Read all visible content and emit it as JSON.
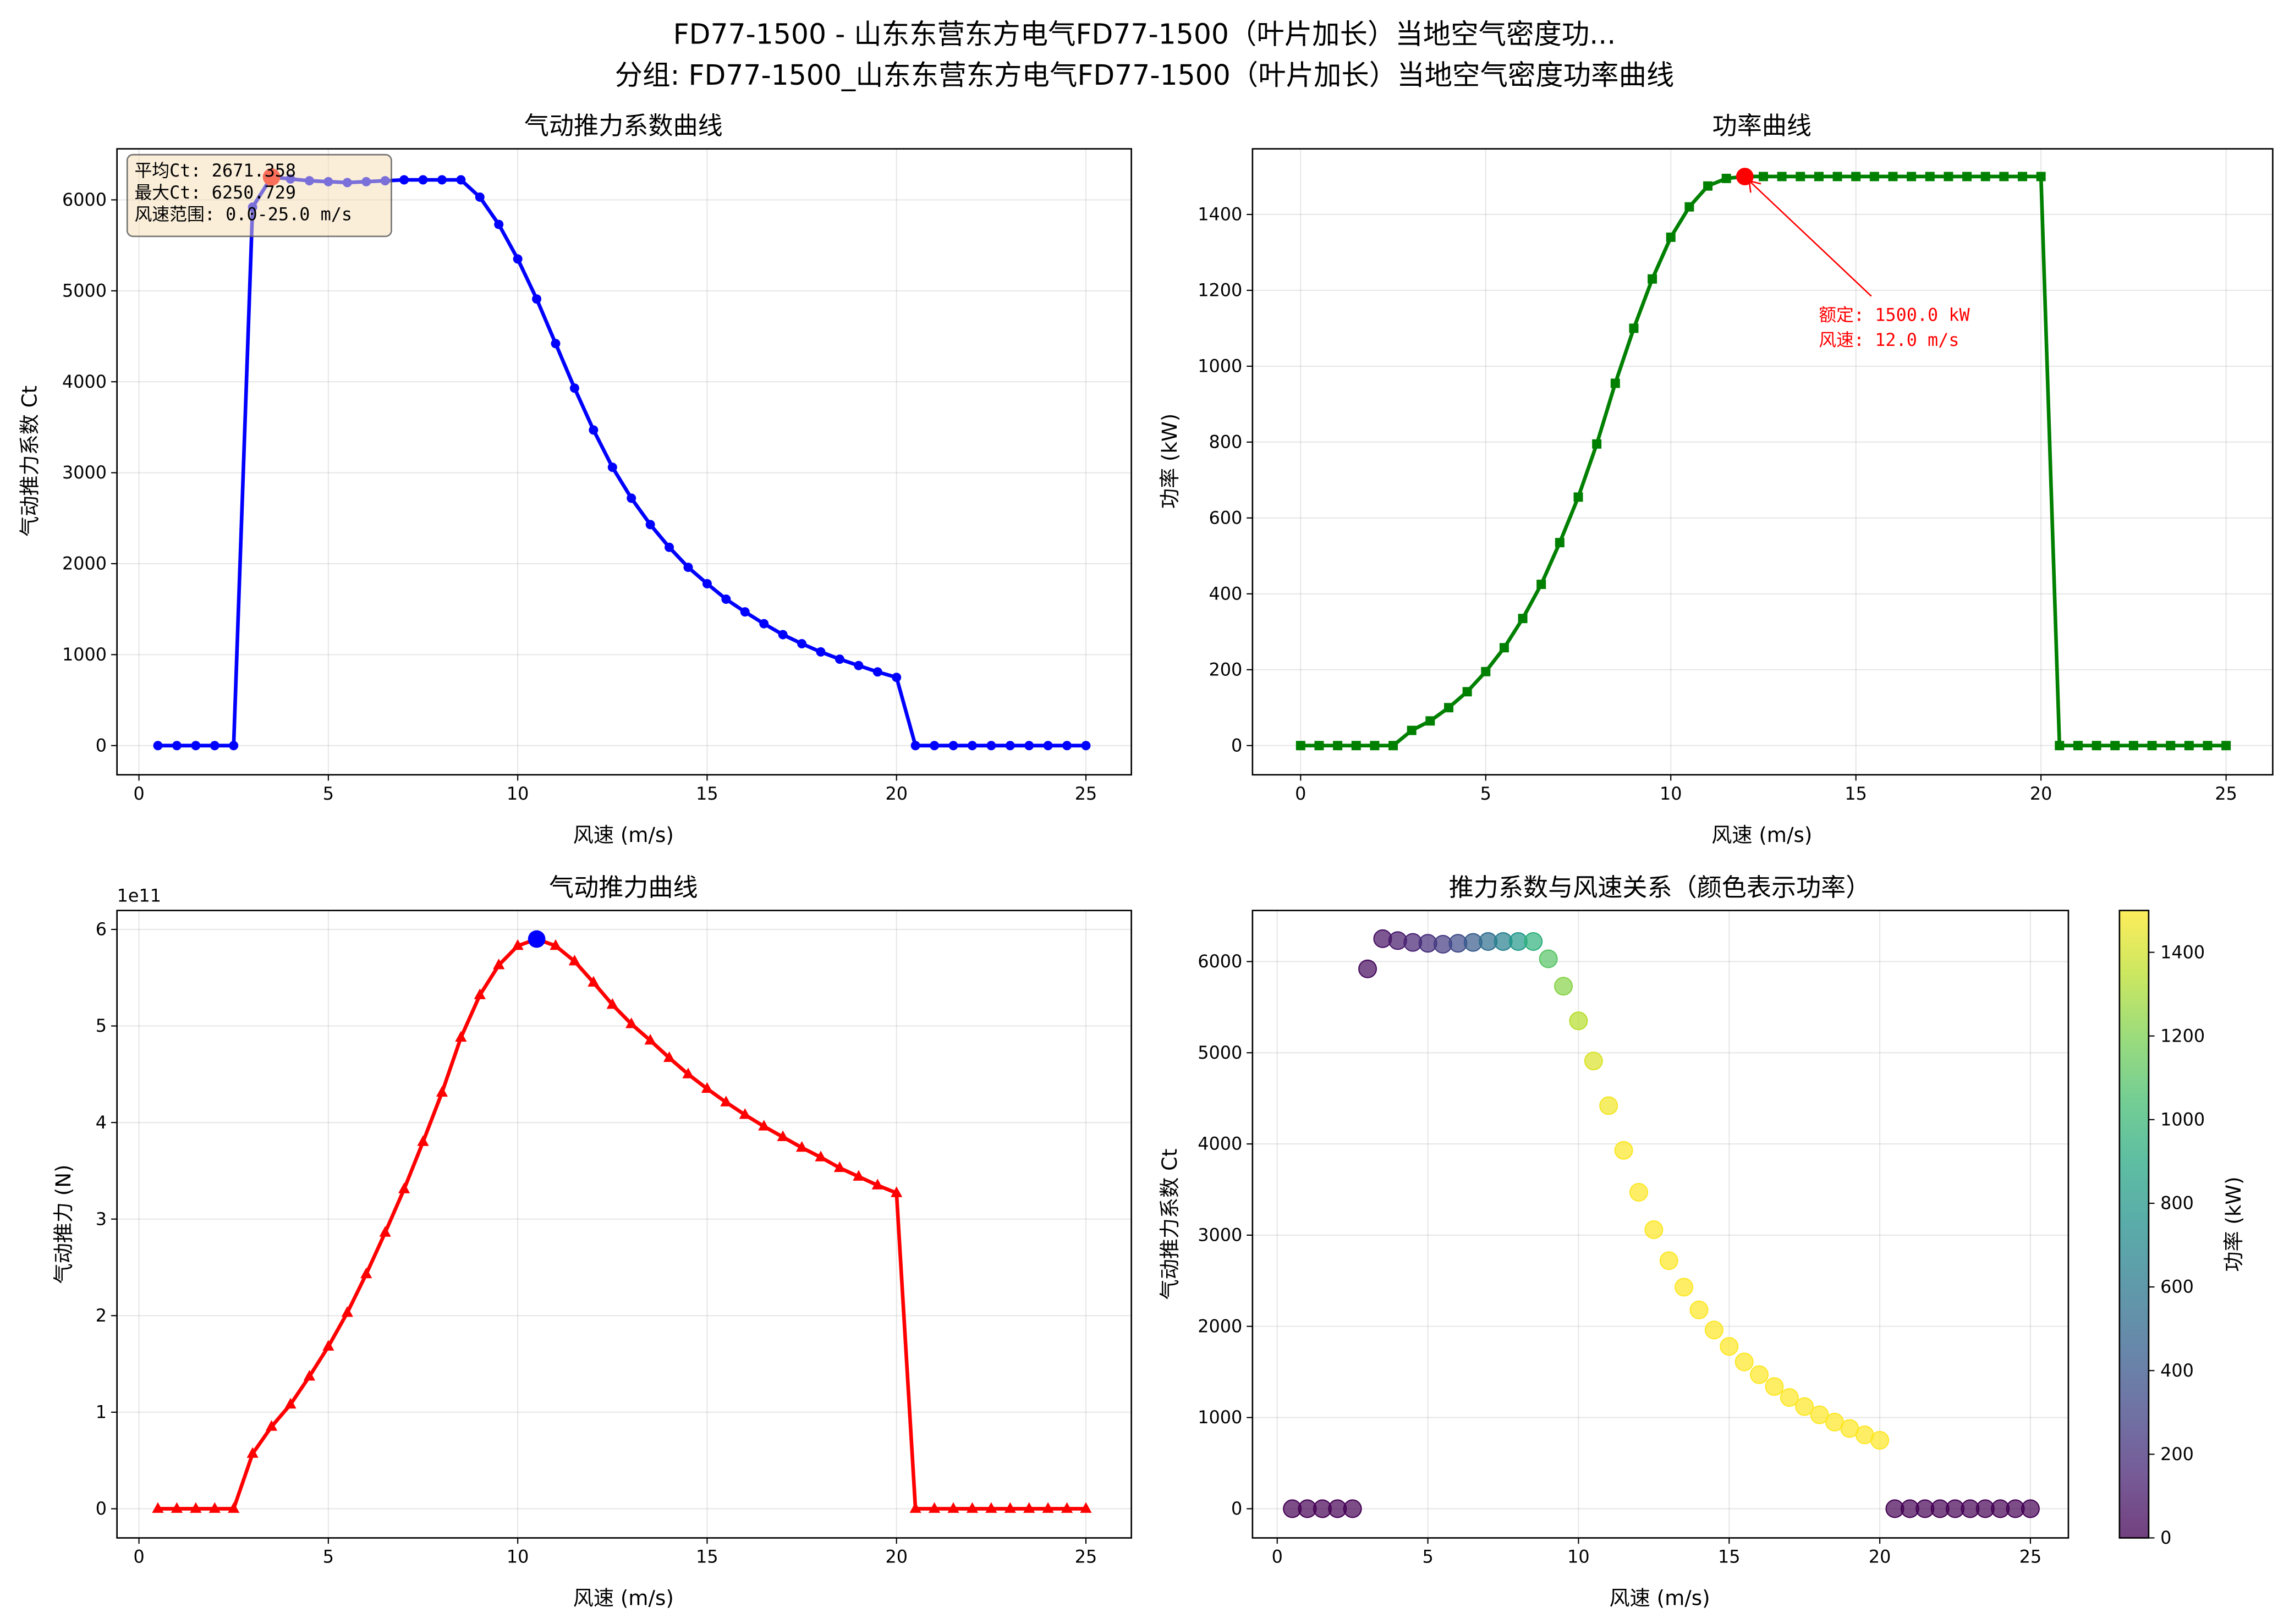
{
  "suptitle": {
    "line1": "FD77-1500 - 山东东营东方电气FD77-1500（叶片加长）当地空气密度功...",
    "line2": "分组: FD77-1500_山东东营东方电气FD77-1500（叶片加长）当地空气密度功率曲线"
  },
  "chart_data": [
    {
      "type": "line",
      "title": "气动推力系数曲线",
      "xlabel": "风速 (m/s)",
      "ylabel": "气动推力系数 Ct",
      "x": [
        0.5,
        1,
        1.5,
        2,
        2.5,
        3,
        3.5,
        4,
        4.5,
        5,
        5.5,
        6,
        6.5,
        7,
        7.5,
        8,
        8.5,
        9,
        9.5,
        10,
        10.5,
        11,
        11.5,
        12,
        12.5,
        13,
        13.5,
        14,
        14.5,
        15,
        15.5,
        16,
        16.5,
        17,
        17.5,
        18,
        18.5,
        19,
        19.5,
        20,
        20.5,
        21,
        21.5,
        22,
        22.5,
        23,
        23.5,
        24,
        24.5,
        25
      ],
      "y": [
        0,
        0,
        0,
        0,
        0,
        5920,
        6250.729,
        6230,
        6210,
        6200,
        6190,
        6200,
        6210,
        6220,
        6220,
        6220,
        6220,
        6030,
        5730,
        5350,
        4910,
        4420,
        3930,
        3470,
        3060,
        2720,
        2430,
        2180,
        1960,
        1780,
        1610,
        1470,
        1340,
        1220,
        1120,
        1030,
        950,
        880,
        810,
        750,
        0,
        0,
        0,
        0,
        0,
        0,
        0,
        0,
        0,
        0
      ],
      "xticks": [
        0,
        5,
        10,
        15,
        20,
        25
      ],
      "yticks": [
        0,
        1000,
        2000,
        3000,
        4000,
        5000,
        6000
      ],
      "color": "#0000ff",
      "marker": "circle",
      "highlight": {
        "x": 3.5,
        "y": 6250.729,
        "color": "#ff0000"
      },
      "textbox": [
        "平均Ct: 2671.358",
        "最大Ct: 6250.729",
        "风速范围: 0.0-25.0 m/s"
      ],
      "grid": true
    },
    {
      "type": "line",
      "title": "功率曲线",
      "xlabel": "风速 (m/s)",
      "ylabel": "功率 (kW)",
      "x": [
        0,
        0.5,
        1,
        1.5,
        2,
        2.5,
        3,
        3.5,
        4,
        4.5,
        5,
        5.5,
        6,
        6.5,
        7,
        7.5,
        8,
        8.5,
        9,
        9.5,
        10,
        10.5,
        11,
        11.5,
        12,
        12.5,
        13,
        13.5,
        14,
        14.5,
        15,
        15.5,
        16,
        16.5,
        17,
        17.5,
        18,
        18.5,
        19,
        19.5,
        20,
        20.5,
        21,
        21.5,
        22,
        22.5,
        23,
        23.5,
        24,
        24.5,
        25
      ],
      "y": [
        0,
        0,
        0,
        0,
        0,
        0,
        40,
        65,
        100,
        142,
        195,
        258,
        335,
        425,
        535,
        655,
        795,
        955,
        1100,
        1230,
        1340,
        1420,
        1475,
        1495,
        1500,
        1500,
        1500,
        1500,
        1500,
        1500,
        1500,
        1500,
        1500,
        1500,
        1500,
        1500,
        1500,
        1500,
        1500,
        1500,
        1500,
        0,
        0,
        0,
        0,
        0,
        0,
        0,
        0,
        0,
        0
      ],
      "xticks": [
        0,
        5,
        10,
        15,
        20,
        25
      ],
      "yticks": [
        0,
        200,
        400,
        600,
        800,
        1000,
        1200,
        1400
      ],
      "color": "#008000",
      "marker": "square",
      "highlight": {
        "x": 12,
        "y": 1500,
        "color": "#ff0000"
      },
      "annotation": [
        "额定: 1500.0 kW",
        "风速: 12.0 m/s"
      ],
      "grid": true
    },
    {
      "type": "line",
      "title": "气动推力曲线",
      "xlabel": "风速 (m/s)",
      "ylabel": "气动推力 (N)",
      "offset_label": "1e11",
      "x": [
        0.5,
        1,
        1.5,
        2,
        2.5,
        3,
        3.5,
        4,
        4.5,
        5,
        5.5,
        6,
        6.5,
        7,
        7.5,
        8,
        8.5,
        9,
        9.5,
        10,
        10.5,
        11,
        11.5,
        12,
        12.5,
        13,
        13.5,
        14,
        14.5,
        15,
        15.5,
        16,
        16.5,
        17,
        17.5,
        18,
        18.5,
        19,
        19.5,
        20,
        20.5,
        21,
        21.5,
        22,
        22.5,
        23,
        23.5,
        24,
        24.5,
        25
      ],
      "y": [
        0,
        0,
        0,
        0,
        0,
        0.57,
        0.85,
        1.08,
        1.37,
        1.68,
        2.03,
        2.43,
        2.86,
        3.31,
        3.8,
        4.31,
        4.88,
        5.32,
        5.63,
        5.83,
        5.9,
        5.83,
        5.67,
        5.45,
        5.22,
        5.02,
        4.85,
        4.67,
        4.5,
        4.35,
        4.21,
        4.08,
        3.96,
        3.85,
        3.74,
        3.64,
        3.53,
        3.44,
        3.35,
        3.27,
        0,
        0,
        0,
        0,
        0,
        0,
        0,
        0,
        0,
        0
      ],
      "xticks": [
        0,
        5,
        10,
        15,
        20,
        25
      ],
      "yticks": [
        0,
        1,
        2,
        3,
        4,
        5,
        6
      ],
      "color": "#ff0000",
      "marker": "triangle",
      "highlight": {
        "x": 10.5,
        "y": 5.9,
        "color": "#0000ff"
      },
      "grid": true
    },
    {
      "type": "scatter",
      "title": "推力系数与风速关系（颜色表示功率）",
      "xlabel": "风速 (m/s)",
      "ylabel": "气动推力系数 Ct",
      "xticks": [
        0,
        5,
        10,
        15,
        20,
        25
      ],
      "yticks": [
        0,
        1000,
        2000,
        3000,
        4000,
        5000,
        6000
      ],
      "colormap": "viridis",
      "colorbar": {
        "label": "功率 (kW)",
        "range": [
          0,
          1500
        ],
        "ticks": [
          0,
          200,
          400,
          600,
          800,
          1000,
          1200,
          1400
        ]
      },
      "grid": true
    }
  ]
}
